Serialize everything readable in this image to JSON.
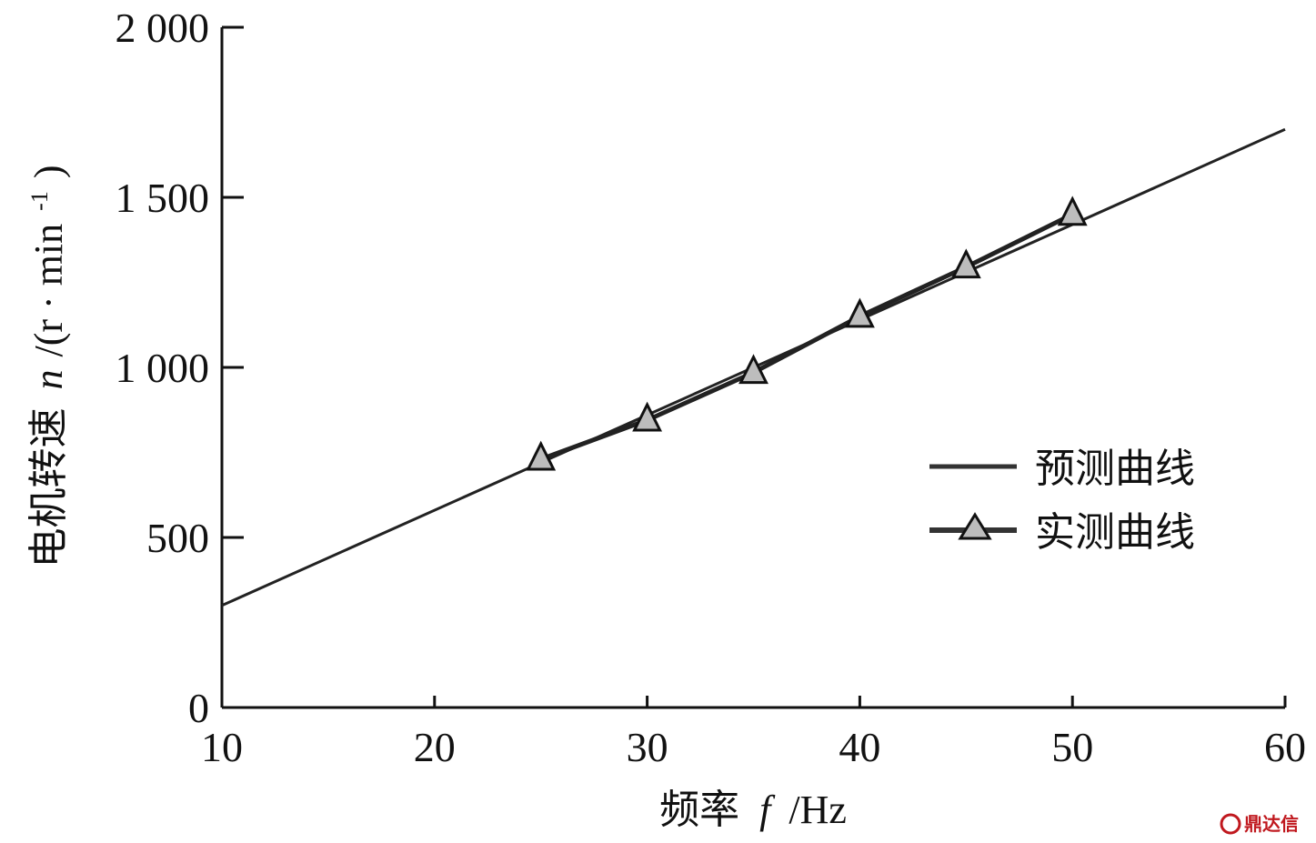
{
  "chart_data": {
    "type": "line",
    "xlabel": {
      "prefix": "频率",
      "symbol": "f",
      "unit": "/Hz"
    },
    "ylabel": {
      "prefix": "电机转速",
      "symbol": "n",
      "unit": "/(r · min",
      "exp": "-1",
      "close": ")"
    },
    "xlim": [
      10,
      60
    ],
    "ylim": [
      0,
      2000
    ],
    "x_ticks": [
      10,
      20,
      30,
      40,
      50,
      60
    ],
    "y_ticks": [
      0,
      500,
      1000,
      1500,
      2000
    ],
    "x_tick_labels": [
      "10",
      "20",
      "30",
      "40",
      "50",
      "60"
    ],
    "y_tick_labels": [
      "0",
      "500",
      "1 000",
      "1 500",
      "2 000"
    ],
    "grid": false,
    "legend_position": "center-right",
    "series": [
      {
        "name": "预测曲线",
        "marker": "none",
        "color": "#222222",
        "x": [
          10,
          60
        ],
        "y": [
          300,
          1700
        ]
      },
      {
        "name": "实测曲线",
        "marker": "triangle",
        "color": "#222222",
        "x": [
          25,
          30,
          35,
          40,
          45,
          50
        ],
        "y": [
          730,
          845,
          985,
          1150,
          1295,
          1450
        ]
      }
    ]
  },
  "watermark": {
    "text": "鼎达信"
  }
}
